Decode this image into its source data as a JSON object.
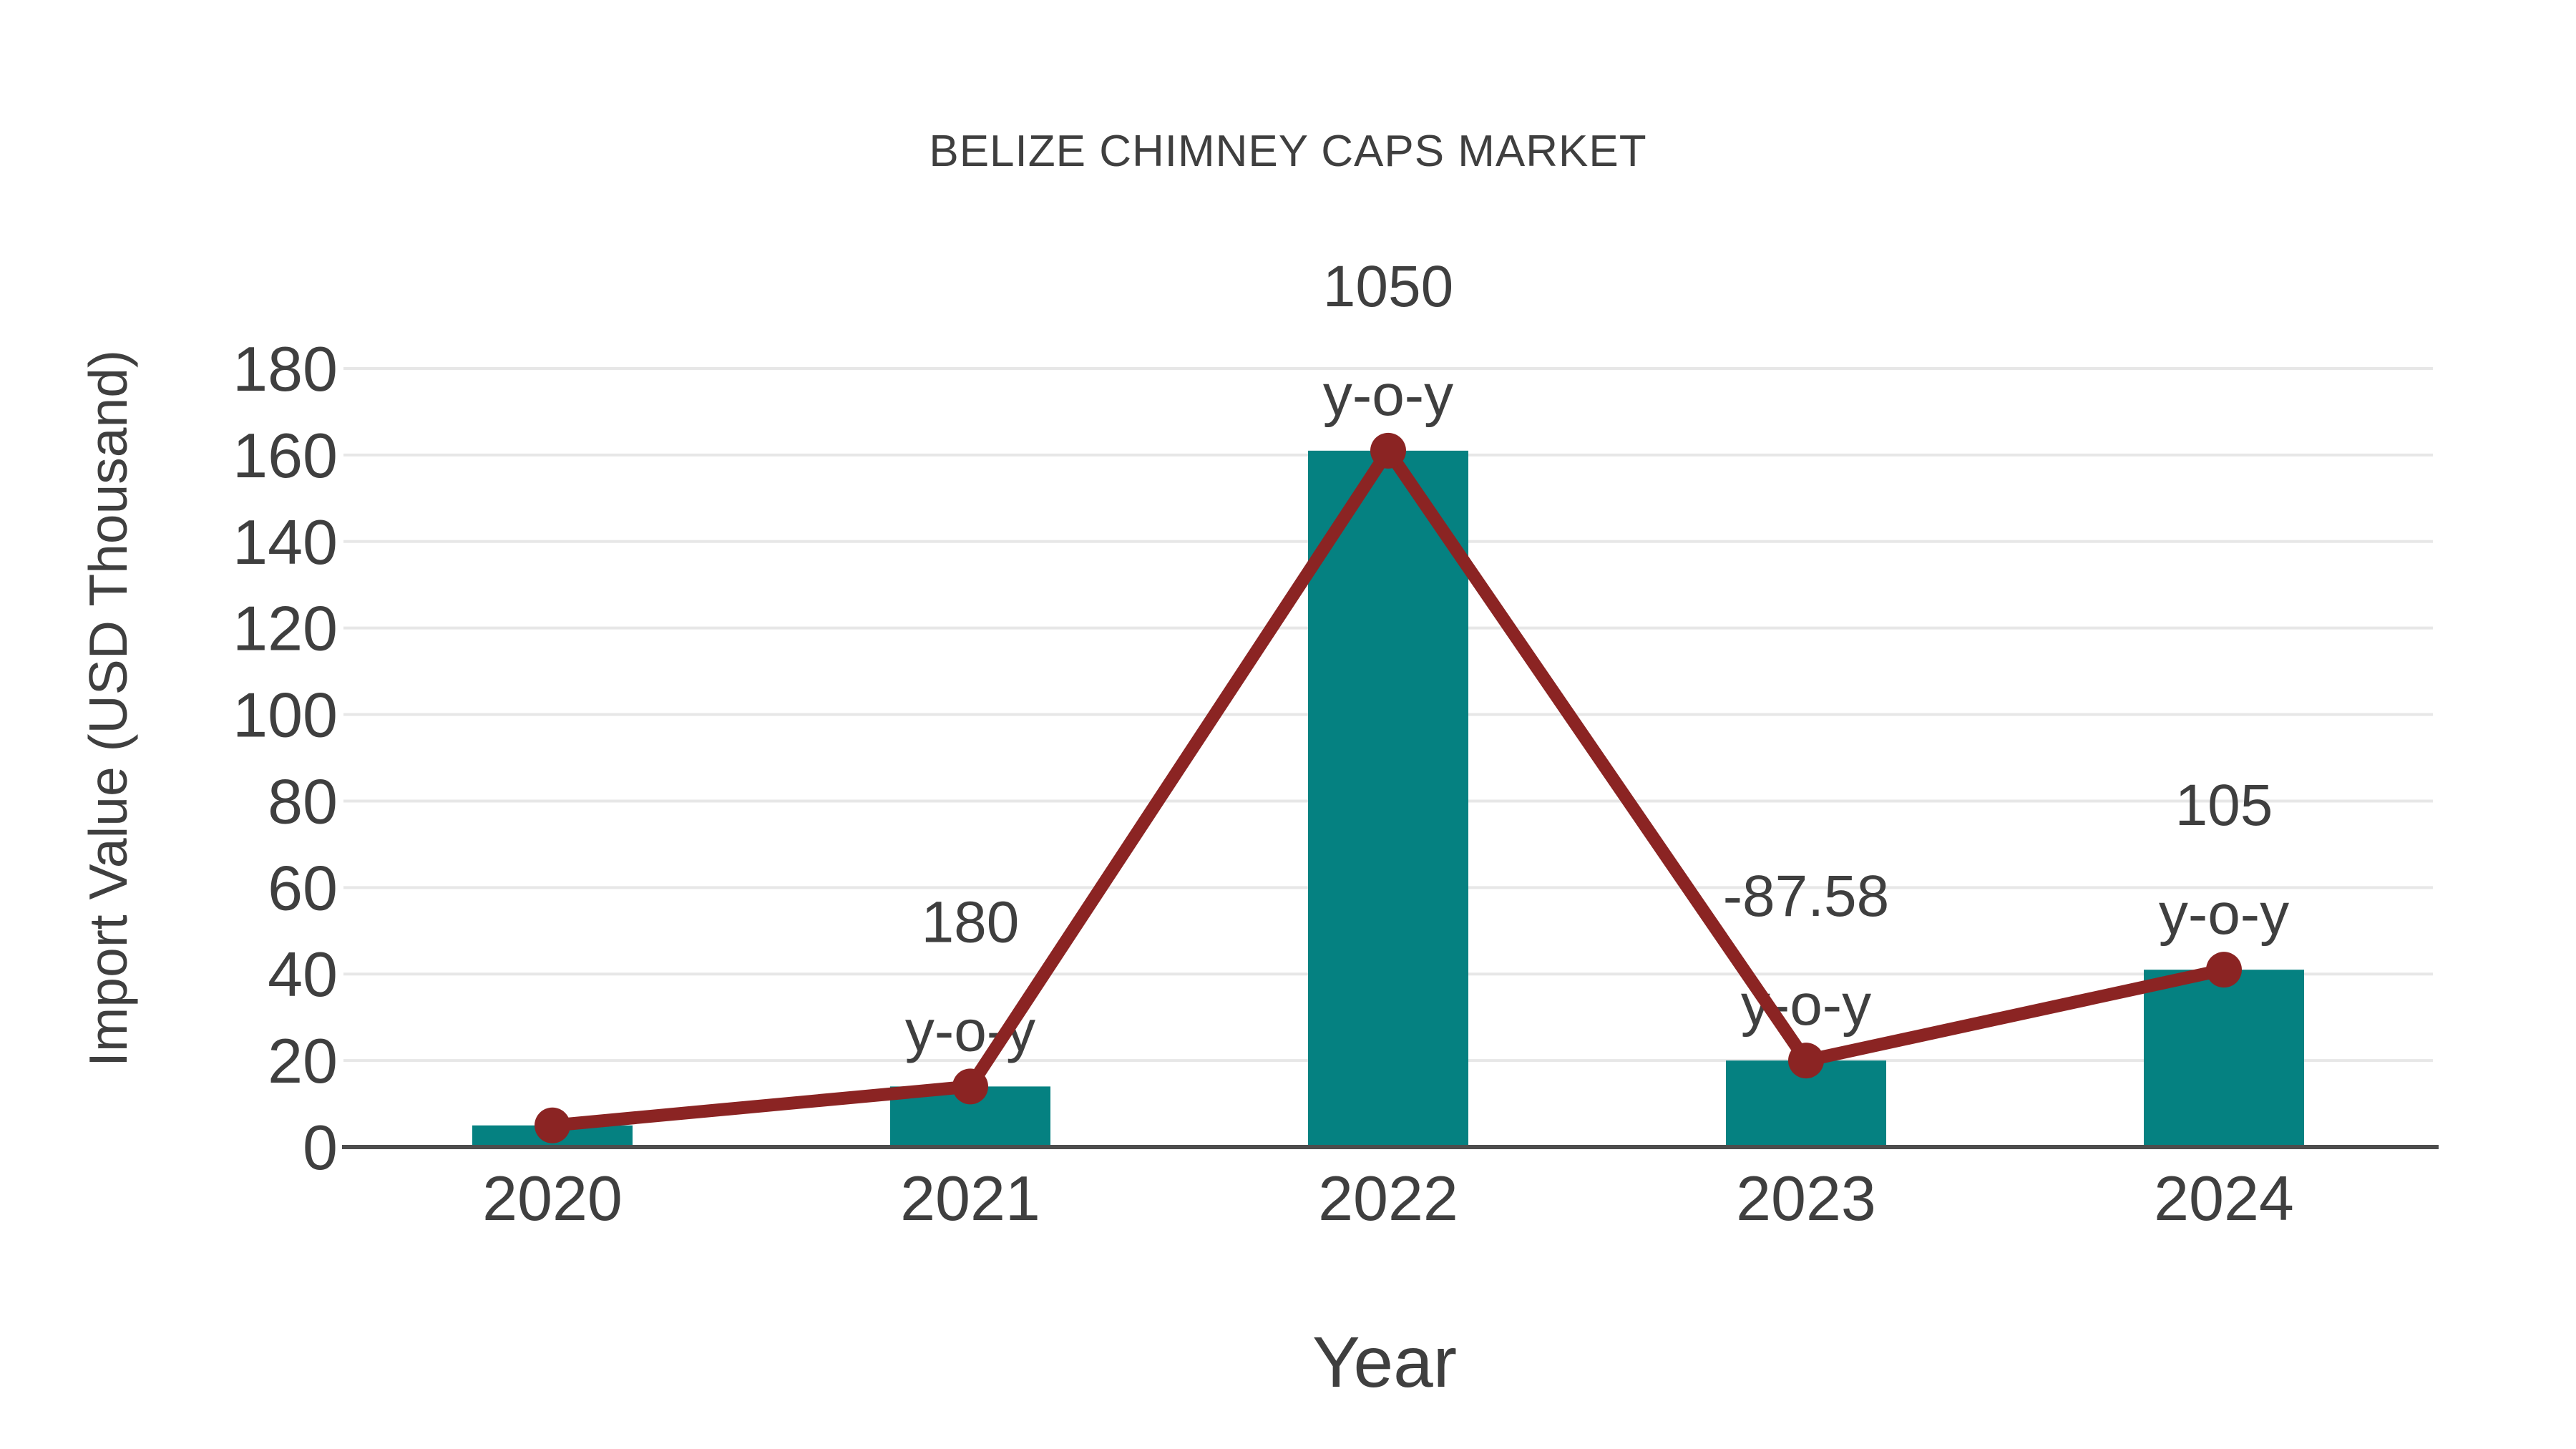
{
  "title": "BELIZE CHIMNEY CAPS MARKET",
  "colors": {
    "bar": "#058181",
    "line": "#8b2423",
    "marker": "#8b2423",
    "text": "#3f3f3f",
    "grid": "#e7e7e7",
    "axis": "#4d4d4d",
    "background": "#ffffff"
  },
  "chart_data": {
    "type": "bar",
    "title": "BELIZE CHIMNEY CAPS MARKET",
    "xlabel": "Year",
    "ylabel": "Import Value (USD Thousand)",
    "categories": [
      "2020",
      "2021",
      "2022",
      "2023",
      "2024"
    ],
    "series": [
      {
        "name": "Import Value (USD Thousand)",
        "type": "bar",
        "values": [
          5,
          14,
          161,
          20,
          41
        ]
      },
      {
        "name": "y-o-y trend line",
        "type": "line",
        "values": [
          5,
          14,
          161,
          20,
          41
        ]
      }
    ],
    "annotations": [
      {
        "category": "2021",
        "value_line": "180",
        "unit_line": "y-o-y"
      },
      {
        "category": "2022",
        "value_line": "1050",
        "unit_line": "y-o-y"
      },
      {
        "category": "2023",
        "value_line": "-87.58",
        "unit_line": "y-o-y"
      },
      {
        "category": "2024",
        "value_line": "105",
        "unit_line": "y-o-y"
      }
    ],
    "ylim": [
      0,
      180
    ],
    "ytick_step": 20,
    "yticks": [
      0,
      20,
      40,
      60,
      80,
      100,
      120,
      140,
      160,
      180
    ],
    "grid": true,
    "legend_position": "none"
  }
}
